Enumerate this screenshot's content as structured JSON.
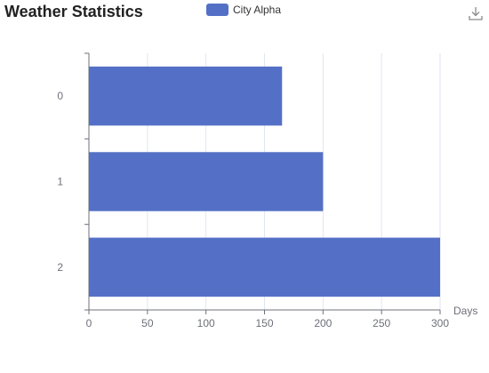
{
  "chart_data": {
    "type": "bar",
    "orientation": "horizontal",
    "title": "Weather Statistics",
    "categories": [
      "0",
      "1",
      "2"
    ],
    "series": [
      {
        "name": "City Alpha",
        "values": [
          165,
          200,
          300
        ],
        "color": "#5470c6"
      }
    ],
    "xlabel": "Days",
    "ylabel": "",
    "xlim": [
      0,
      300
    ],
    "x_ticks": [
      "0",
      "50",
      "100",
      "150",
      "200",
      "250",
      "300"
    ],
    "grid": "vertical",
    "legend_position": "top-center"
  },
  "toolbar": {
    "download_icon": "download-icon"
  }
}
